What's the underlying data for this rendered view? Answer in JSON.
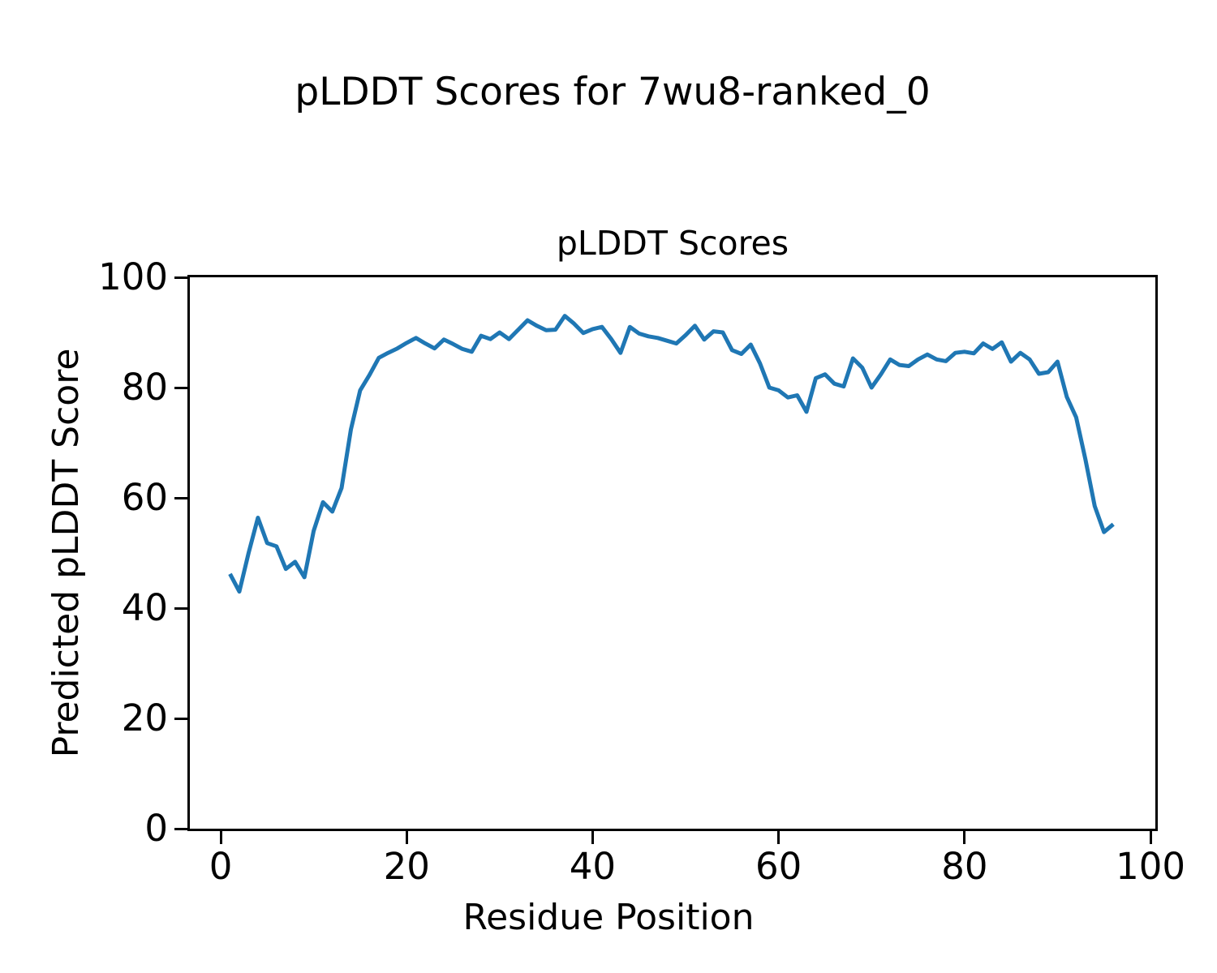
{
  "figure": {
    "suptitle": "pLDDT Scores for 7wu8-ranked_0",
    "background": "#ffffff",
    "text_color": "#000000"
  },
  "chart_data": {
    "type": "line",
    "title": "pLDDT Scores",
    "xlabel": "Residue Position",
    "ylabel": "Predicted pLDDT Score",
    "xlim": [
      -3.32,
      100.52
    ],
    "ylim": [
      0,
      100
    ],
    "xticks": [
      0,
      20,
      40,
      60,
      80,
      100
    ],
    "yticks": [
      0,
      20,
      40,
      60,
      80,
      100
    ],
    "grid": false,
    "legend": "none",
    "line_color": "#1f77b4",
    "line_width": 5,
    "series": [
      {
        "name": "pLDDT",
        "x_start": 1,
        "x_step": 1,
        "values": [
          46.2,
          43.0,
          50.0,
          56.4,
          51.8,
          51.2,
          47.1,
          48.4,
          45.6,
          54.0,
          59.2,
          57.5,
          61.8,
          72.4,
          79.5,
          82.3,
          85.4,
          86.3,
          87.1,
          88.1,
          89.0,
          88.0,
          87.1,
          88.7,
          87.9,
          87.0,
          86.5,
          89.4,
          88.8,
          90.0,
          88.8,
          90.5,
          92.2,
          91.2,
          90.4,
          90.5,
          93.0,
          91.6,
          89.9,
          90.6,
          91.0,
          88.8,
          86.3,
          91.0,
          89.8,
          89.3,
          89.0,
          88.5,
          88.0,
          89.5,
          91.2,
          88.7,
          90.2,
          90.0,
          86.8,
          86.1,
          87.8,
          84.4,
          80.0,
          79.5,
          78.2,
          78.6,
          75.6,
          81.7,
          82.4,
          80.7,
          80.2,
          85.3,
          83.6,
          80.0,
          82.4,
          85.1,
          84.1,
          83.9,
          85.1,
          86.0,
          85.1,
          84.8,
          86.3,
          86.5,
          86.2,
          88.0,
          87.0,
          88.2,
          84.7,
          86.3,
          85.1,
          82.5,
          82.8,
          84.7,
          78.3,
          74.6,
          67.0,
          58.5,
          53.8,
          55.2
        ]
      }
    ]
  }
}
